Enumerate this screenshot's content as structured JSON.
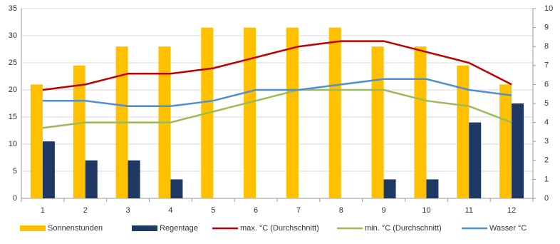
{
  "chart_data": {
    "type": "bar-line",
    "categories": [
      "1",
      "2",
      "3",
      "4",
      "5",
      "6",
      "7",
      "8",
      "9",
      "10",
      "11",
      "12"
    ],
    "series": [
      {
        "name": "Sonnenstunden",
        "type": "bar",
        "axis": "y2",
        "color": "#ffc000",
        "values": [
          6,
          7,
          8,
          8,
          9,
          9,
          9,
          9,
          8,
          8,
          7,
          6
        ]
      },
      {
        "name": "Regentage",
        "type": "bar",
        "axis": "y2",
        "color": "#1f3864",
        "values": [
          3,
          2,
          2,
          1,
          0,
          0,
          0,
          0,
          1,
          1,
          4,
          5
        ]
      },
      {
        "name": "max. °C (Durchschnitt)",
        "type": "line",
        "color": "#c00000",
        "values": [
          20,
          21,
          23,
          23,
          24,
          26,
          28,
          29,
          29,
          27,
          25,
          21
        ]
      },
      {
        "name": "min. °C (Durchschnitt)",
        "type": "line",
        "color": "#9bbb59",
        "values": [
          13,
          14,
          14,
          14,
          16,
          18,
          20,
          20,
          20,
          18,
          17,
          14
        ]
      },
      {
        "name": "Wasser °C",
        "type": "line",
        "color": "#4f8fd6",
        "values": [
          18,
          18,
          17,
          17,
          18,
          20,
          20,
          21,
          22,
          22,
          20,
          19
        ]
      }
    ],
    "ylim": [
      0,
      35
    ],
    "yticks": [
      0,
      5,
      10,
      15,
      20,
      25,
      30,
      35
    ],
    "y2lim": [
      0,
      10
    ],
    "y2ticks": [
      0,
      1,
      2,
      3,
      4,
      5,
      6,
      7,
      8,
      9,
      10
    ],
    "grid": true
  }
}
